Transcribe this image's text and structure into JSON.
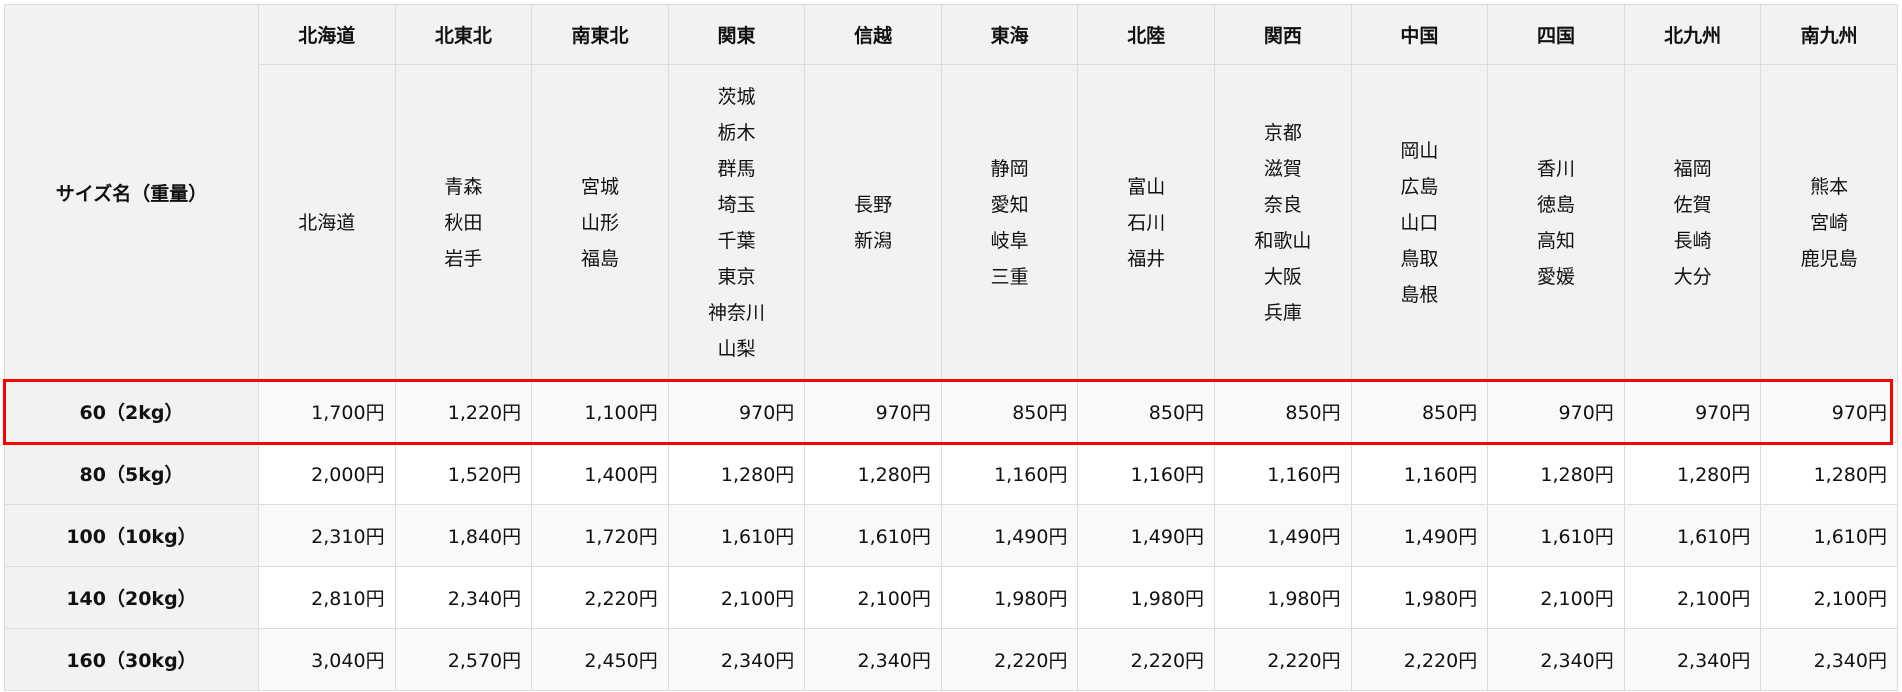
{
  "table": {
    "size_header": "サイズ名（重量）",
    "regions": [
      {
        "name": "北海道",
        "prefectures": [
          "北海道"
        ]
      },
      {
        "name": "北東北",
        "prefectures": [
          "青森",
          "秋田",
          "岩手"
        ]
      },
      {
        "name": "南東北",
        "prefectures": [
          "宮城",
          "山形",
          "福島"
        ]
      },
      {
        "name": "関東",
        "prefectures": [
          "茨城",
          "栃木",
          "群馬",
          "埼玉",
          "千葉",
          "東京",
          "神奈川",
          "山梨"
        ]
      },
      {
        "name": "信越",
        "prefectures": [
          "長野",
          "新潟"
        ]
      },
      {
        "name": "東海",
        "prefectures": [
          "静岡",
          "愛知",
          "岐阜",
          "三重"
        ]
      },
      {
        "name": "北陸",
        "prefectures": [
          "富山",
          "石川",
          "福井"
        ]
      },
      {
        "name": "関西",
        "prefectures": [
          "京都",
          "滋賀",
          "奈良",
          "和歌山",
          "大阪",
          "兵庫"
        ]
      },
      {
        "name": "中国",
        "prefectures": [
          "岡山",
          "広島",
          "山口",
          "鳥取",
          "島根"
        ]
      },
      {
        "name": "四国",
        "prefectures": [
          "香川",
          "徳島",
          "高知",
          "愛媛"
        ]
      },
      {
        "name": "北九州",
        "prefectures": [
          "福岡",
          "佐賀",
          "長崎",
          "大分"
        ]
      },
      {
        "name": "南九州",
        "prefectures": [
          "熊本",
          "宮崎",
          "鹿児島"
        ]
      }
    ],
    "rows": [
      {
        "size": "60（2kg）",
        "highlighted": true,
        "prices": [
          "1,700円",
          "1,220円",
          "1,100円",
          "970円",
          "970円",
          "850円",
          "850円",
          "850円",
          "850円",
          "970円",
          "970円",
          "970円"
        ]
      },
      {
        "size": "80（5kg）",
        "prices": [
          "2,000円",
          "1,520円",
          "1,400円",
          "1,280円",
          "1,280円",
          "1,160円",
          "1,160円",
          "1,160円",
          "1,160円",
          "1,280円",
          "1,280円",
          "1,280円"
        ]
      },
      {
        "size": "100（10kg）",
        "prices": [
          "2,310円",
          "1,840円",
          "1,720円",
          "1,610円",
          "1,610円",
          "1,490円",
          "1,490円",
          "1,490円",
          "1,490円",
          "1,610円",
          "1,610円",
          "1,610円"
        ]
      },
      {
        "size": "140（20kg）",
        "prices": [
          "2,810円",
          "2,340円",
          "2,220円",
          "2,100円",
          "2,100円",
          "1,980円",
          "1,980円",
          "1,980円",
          "1,980円",
          "2,100円",
          "2,100円",
          "2,100円"
        ]
      },
      {
        "size": "160（30kg）",
        "prices": [
          "3,040円",
          "2,570円",
          "2,450円",
          "2,340円",
          "2,340円",
          "2,220円",
          "2,220円",
          "2,220円",
          "2,220円",
          "2,340円",
          "2,340円",
          "2,340円"
        ]
      }
    ],
    "highlight_color": "#ff0000"
  }
}
